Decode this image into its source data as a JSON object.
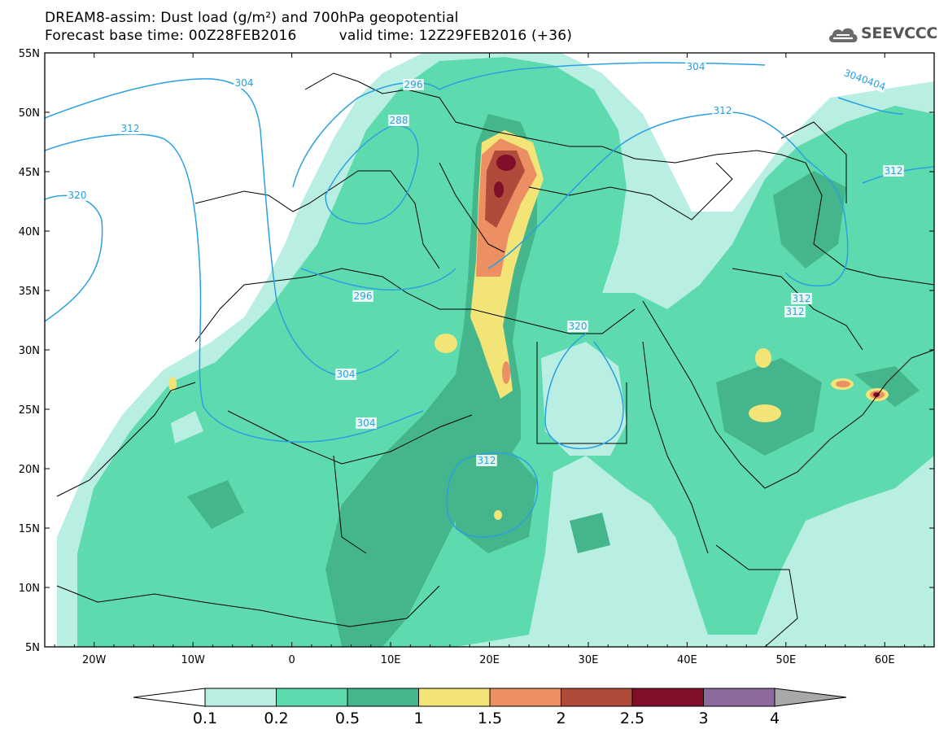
{
  "header": {
    "title_line1": "DREAM8-assim: Dust load (g/m²) and 700hPa geopotential",
    "forecast_base": "Forecast base time: 00Z28FEB2016",
    "valid_time": "valid time: 12Z29FEB2016 (+36)",
    "logo_text": "SEEVCCC"
  },
  "map": {
    "lon_range": [
      -25,
      65
    ],
    "lat_range": [
      5,
      55
    ],
    "lat_labels": [
      "55N",
      "50N",
      "45N",
      "40N",
      "35N",
      "30N",
      "25N",
      "20N",
      "15N",
      "10N",
      "5N"
    ],
    "lat_values": [
      55,
      50,
      45,
      40,
      35,
      30,
      25,
      20,
      15,
      10,
      5
    ],
    "lon_labels": [
      "20W",
      "10W",
      "0",
      "10E",
      "20E",
      "30E",
      "40E",
      "50E",
      "60E"
    ],
    "lon_values": [
      -20,
      -10,
      0,
      10,
      20,
      30,
      40,
      50,
      60
    ],
    "contour_labels": [
      "304",
      "312",
      "320",
      "296",
      "288",
      "312",
      "304",
      "304",
      "3040404",
      "312",
      "312",
      "312",
      "296",
      "320",
      "304",
      "312",
      "320"
    ],
    "contour_color": "#2aa0e0"
  },
  "colorbar": {
    "labels": [
      "0.1",
      "0.2",
      "0.5",
      "1",
      "1.5",
      "2",
      "2.5",
      "3",
      "4"
    ],
    "colors": [
      "#b9eee3",
      "#5ddbaf",
      "#45b68c",
      "#f3e478",
      "#ec8f63",
      "#b04a3b",
      "#820f2a",
      "#8d6a9d",
      "#a8a8a8"
    ]
  }
}
